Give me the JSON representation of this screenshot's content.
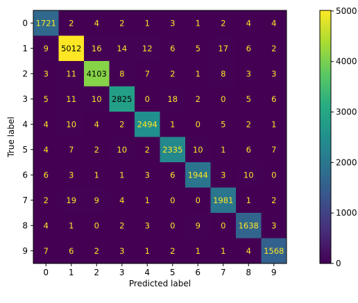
{
  "chart_data": {
    "type": "heatmap",
    "xlabel": "Predicted label",
    "ylabel": "True label",
    "x_categories": [
      "0",
      "1",
      "2",
      "3",
      "4",
      "5",
      "6",
      "7",
      "8",
      "9"
    ],
    "y_categories": [
      "0",
      "1",
      "2",
      "3",
      "4",
      "5",
      "6",
      "7",
      "8",
      "9"
    ],
    "values": [
      [
        1721,
        2,
        4,
        2,
        1,
        3,
        1,
        2,
        4,
        4
      ],
      [
        9,
        5012,
        16,
        14,
        12,
        6,
        5,
        17,
        6,
        2
      ],
      [
        3,
        11,
        4103,
        8,
        7,
        2,
        1,
        8,
        3,
        3
      ],
      [
        5,
        11,
        10,
        2825,
        0,
        18,
        2,
        0,
        5,
        6
      ],
      [
        4,
        10,
        4,
        2,
        2494,
        1,
        0,
        5,
        2,
        1
      ],
      [
        4,
        7,
        2,
        10,
        2,
        2335,
        10,
        1,
        6,
        7
      ],
      [
        6,
        3,
        1,
        1,
        3,
        6,
        1944,
        3,
        10,
        0
      ],
      [
        2,
        19,
        9,
        4,
        1,
        0,
        0,
        1981,
        1,
        2
      ],
      [
        4,
        1,
        0,
        2,
        3,
        0,
        9,
        0,
        1638,
        3
      ],
      [
        7,
        6,
        2,
        3,
        1,
        2,
        1,
        1,
        4,
        1568
      ]
    ],
    "colormap": "viridis",
    "colorbar": {
      "range": [
        0,
        5012
      ],
      "ticks": [
        0,
        1000,
        2000,
        3000,
        4000,
        5000
      ],
      "tick_labels": [
        "0",
        "1000",
        "2000",
        "3000",
        "4000",
        "5000"
      ]
    },
    "text_color_low": "#fde725",
    "text_color_high": "#000000"
  }
}
